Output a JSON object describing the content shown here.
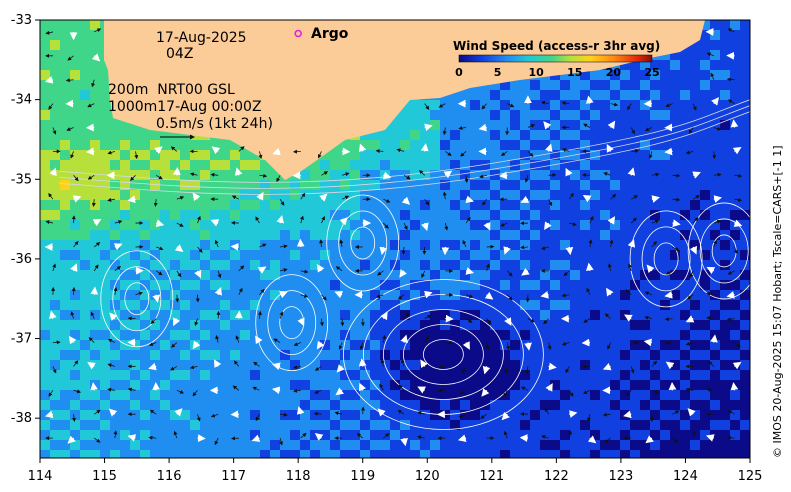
{
  "chart_data": {
    "type": "heatmap",
    "title": "Wind Speed (access-r 3hr avg)",
    "colorbar": {
      "label": "Wind Speed (access-r 3hr avg)",
      "ticks": [
        "0",
        "5",
        "10",
        "15",
        "20",
        "25"
      ],
      "range": [
        0,
        25
      ],
      "colors": [
        "#0b0b8a",
        "#1040e0",
        "#1f8ef0",
        "#20c8d8",
        "#3fd68a",
        "#b8e03a",
        "#ffd21a",
        "#ff8a10",
        "#e52a0a",
        "#8a0a0a"
      ]
    },
    "x_axis": {
      "ticks": [
        "114",
        "115",
        "116",
        "117",
        "118",
        "119",
        "120",
        "121",
        "122",
        "123",
        "124",
        "125"
      ],
      "range": [
        114,
        125
      ]
    },
    "y_axis": {
      "ticks": [
        "-33",
        "-34",
        "-35",
        "-36",
        "-37",
        "-38"
      ],
      "range": [
        -38.5,
        -33
      ]
    },
    "land_color": "#fbcb98",
    "annotations": {
      "date": "17-Aug-2025",
      "time": "04Z",
      "contour_line1": "200m  NRT00 GSL",
      "contour_line2": "1000m17-Aug 00:00Z",
      "scale": "0.5m/s (1kt 24h)"
    },
    "argo": {
      "label": "Argo",
      "lon": 118.0,
      "lat": -33.17,
      "marker_color": "#e020e0"
    },
    "credit": "© IMOS 20-Aug-2025 15:07 Hobart; Tscale=CARS+[-1 1]",
    "eddies": [
      {
        "lon": 120.25,
        "lat": -37.2,
        "type": "cyclonic-low"
      },
      {
        "lon": 115.5,
        "lat": -36.5,
        "type": "eddy"
      },
      {
        "lon": 117.9,
        "lat": -36.8,
        "type": "eddy"
      },
      {
        "lon": 119.0,
        "lat": -35.8,
        "type": "eddy"
      },
      {
        "lon": 123.7,
        "lat": -36.0,
        "type": "eddy"
      },
      {
        "lon": 124.6,
        "lat": -35.9,
        "type": "eddy"
      }
    ]
  }
}
